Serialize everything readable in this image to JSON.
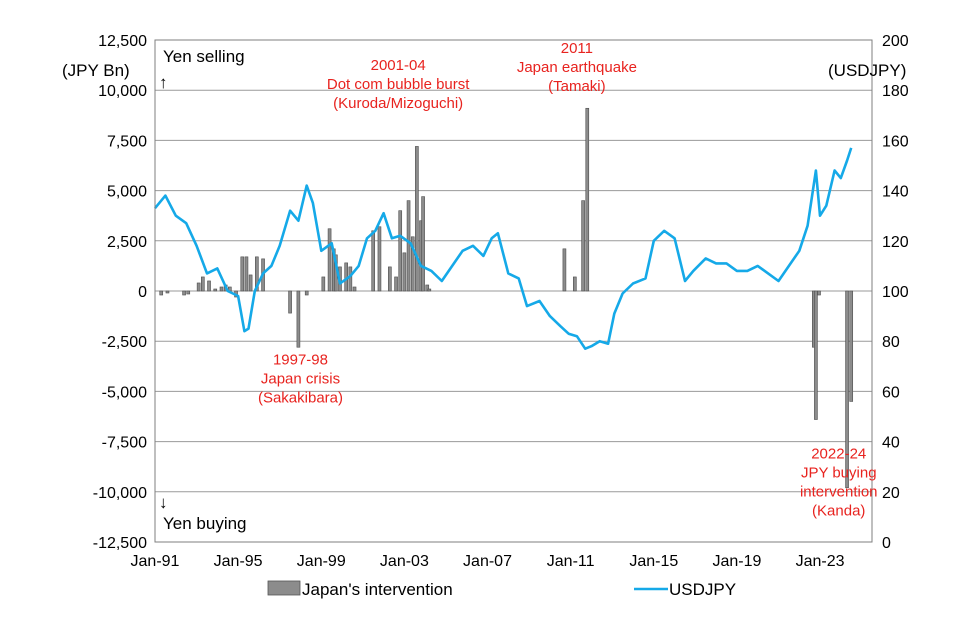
{
  "chart_data": {
    "type": "bar+line",
    "left_axis": {
      "label": "(JPY Bn)",
      "range": [
        -12500,
        12500
      ],
      "ticks": [
        12500,
        10000,
        7500,
        5000,
        2500,
        0,
        -2500,
        -5000,
        -7500,
        -10000,
        -12500
      ],
      "tick_labels": [
        "12,500",
        "10,000",
        "7,500",
        "5,000",
        "2,500",
        "0",
        "-2,500",
        "-5,000",
        "-7,500",
        "-10,000",
        "-12,500"
      ]
    },
    "right_axis": {
      "label": "(USDJPY)",
      "range": [
        0,
        200
      ],
      "ticks": [
        200,
        180,
        160,
        140,
        120,
        100,
        80,
        60,
        40,
        20,
        0
      ],
      "tick_labels": [
        "200",
        "180",
        "160",
        "140",
        "120",
        "100",
        "80",
        "60",
        "40",
        "20",
        "0"
      ]
    },
    "x_axis": {
      "range": [
        1991.0,
        2025.5
      ],
      "ticks": [
        1991,
        1995,
        1999,
        2003,
        2007,
        2011,
        2015,
        2019,
        2023
      ],
      "tick_labels": [
        "Jan-91",
        "Jan-95",
        "Jan-99",
        "Jan-03",
        "Jan-07",
        "Jan-11",
        "Jan-15",
        "Jan-19",
        "Jan-23"
      ]
    },
    "grid": "horizontal",
    "texts": {
      "yen_selling": "Yen selling",
      "yen_buying": "Yen buying",
      "up_arrow": "↑",
      "down_arrow": "↓"
    },
    "annotations": [
      {
        "lines": [
          "2001-04",
          "Dot com bubble burst",
          "(Kuroda/Mizoguchi)"
        ],
        "x": 2002.7,
        "y": 11000
      },
      {
        "lines": [
          "2011",
          "Japan earthquake",
          "(Tamaki)"
        ],
        "x": 2011.3,
        "y": 11850
      },
      {
        "lines": [
          "1997-98",
          "Japan crisis",
          "(Sakakibara)"
        ],
        "x": 1998.0,
        "y": -3650
      },
      {
        "lines": [
          "2022-24",
          "JPY buying",
          "intervention",
          "(Kanda)"
        ],
        "x": 2023.9,
        "y": -8350
      }
    ],
    "series": [
      {
        "name": "Japan's intervention",
        "type": "bar",
        "axis": "left",
        "color": "#8c8c8c",
        "x": [
          1991.3,
          1991.6,
          1992.4,
          1992.6,
          1993.1,
          1993.3,
          1993.6,
          1993.9,
          1994.2,
          1994.4,
          1994.6,
          1994.9,
          1995.2,
          1995.4,
          1995.6,
          1995.9,
          1996.2,
          1997.5,
          1997.9,
          1998.3,
          1999.1,
          1999.4,
          1999.6,
          1999.7,
          1999.9,
          2000.2,
          2000.4,
          2000.6,
          2001.5,
          2001.8,
          2002.3,
          2002.6,
          2002.8,
          2003.0,
          2003.2,
          2003.4,
          2003.6,
          2003.8,
          2003.9,
          2004.1,
          2004.2,
          2010.7,
          2011.2,
          2011.6,
          2011.8,
          2022.7,
          2022.8,
          2022.95,
          2024.3,
          2024.5
        ],
        "values": [
          -200,
          -100,
          -200,
          -150,
          400,
          700,
          500,
          100,
          200,
          300,
          200,
          -300,
          1700,
          1700,
          800,
          1700,
          1600,
          -1100,
          -2800,
          -200,
          700,
          3100,
          2100,
          1800,
          1200,
          1400,
          1200,
          200,
          3000,
          3200,
          1200,
          700,
          4000,
          1900,
          4500,
          2700,
          7200,
          3500,
          4700,
          300,
          100,
          2100,
          700,
          4500,
          9100,
          -2800,
          -6400,
          -200,
          -9800,
          -5500
        ]
      },
      {
        "name": "USDJPY",
        "type": "line",
        "axis": "right",
        "color": "#15a9e8",
        "x": [
          1991.0,
          1991.5,
          1992.0,
          1992.5,
          1993.0,
          1993.5,
          1994.0,
          1994.5,
          1995.0,
          1995.3,
          1995.5,
          1995.8,
          1996.2,
          1996.6,
          1997.0,
          1997.5,
          1997.9,
          1998.3,
          1998.6,
          1999.0,
          1999.5,
          1999.9,
          2000.4,
          2000.8,
          2001.2,
          2001.6,
          2002.0,
          2002.4,
          2002.8,
          2003.3,
          2003.8,
          2004.3,
          2004.8,
          2005.3,
          2005.8,
          2006.3,
          2006.8,
          2007.2,
          2007.5,
          2008.0,
          2008.5,
          2008.9,
          2009.5,
          2010.0,
          2010.5,
          2010.9,
          2011.3,
          2011.7,
          2012.0,
          2012.4,
          2012.8,
          2013.1,
          2013.5,
          2014.0,
          2014.6,
          2015.0,
          2015.5,
          2016.0,
          2016.5,
          2016.9,
          2017.5,
          2018.0,
          2018.5,
          2019.0,
          2019.5,
          2020.0,
          2020.5,
          2021.0,
          2021.5,
          2022.0,
          2022.4,
          2022.8,
          2023.0,
          2023.3,
          2023.7,
          2024.0,
          2024.3,
          2024.5
        ],
        "values": [
          133,
          138,
          130,
          127,
          118,
          107,
          109,
          100,
          98,
          84,
          85,
          100,
          107,
          110,
          118,
          132,
          128,
          142,
          135,
          116,
          119,
          103,
          106,
          110,
          121,
          124,
          131,
          121,
          122,
          119,
          110,
          108,
          104,
          110,
          116,
          118,
          114,
          121,
          123,
          107,
          105,
          94,
          96,
          90,
          86,
          83,
          82,
          77,
          78,
          80,
          79,
          91,
          99,
          103,
          105,
          120,
          124,
          121,
          104,
          108,
          113,
          111,
          111,
          108,
          108,
          110,
          107,
          104,
          110,
          116,
          126,
          148,
          130,
          134,
          148,
          145,
          152,
          157
        ]
      }
    ]
  }
}
